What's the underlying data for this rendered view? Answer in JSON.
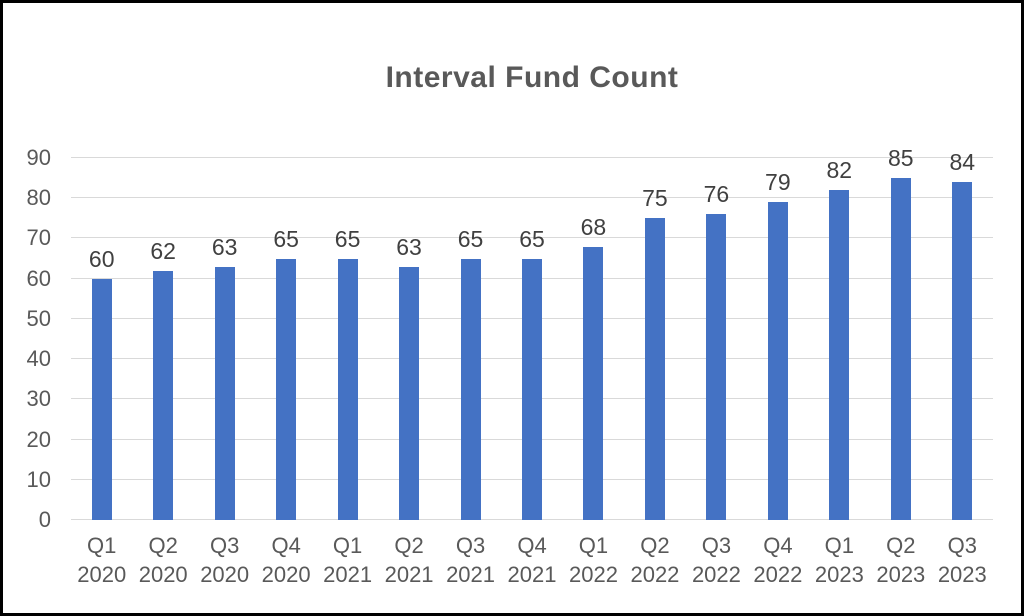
{
  "chart_data": {
    "type": "bar",
    "title": "Interval Fund Count",
    "categories": [
      "Q1 2020",
      "Q2 2020",
      "Q3 2020",
      "Q4 2020",
      "Q1 2021",
      "Q2 2021",
      "Q3 2021",
      "Q4 2021",
      "Q1 2022",
      "Q2 2022",
      "Q3 2022",
      "Q4 2022",
      "Q1 2023",
      "Q2 2023",
      "Q3 2023"
    ],
    "values": [
      60,
      62,
      63,
      65,
      65,
      63,
      65,
      65,
      68,
      75,
      76,
      79,
      82,
      85,
      84
    ],
    "xlabel": "",
    "ylabel": "",
    "ylim": [
      0,
      90
    ],
    "yticks": [
      0,
      10,
      20,
      30,
      40,
      50,
      60,
      70,
      80,
      90
    ],
    "grid": true,
    "legend_position": "none",
    "data_labels": true,
    "colors": {
      "bar": "#4472C4",
      "gridline": "#D9D9D9",
      "tick_text": "#595959",
      "data_label_text": "#404040",
      "title_text": "#595959",
      "background": "#FFFFFF",
      "frame_border": "#000000"
    }
  }
}
